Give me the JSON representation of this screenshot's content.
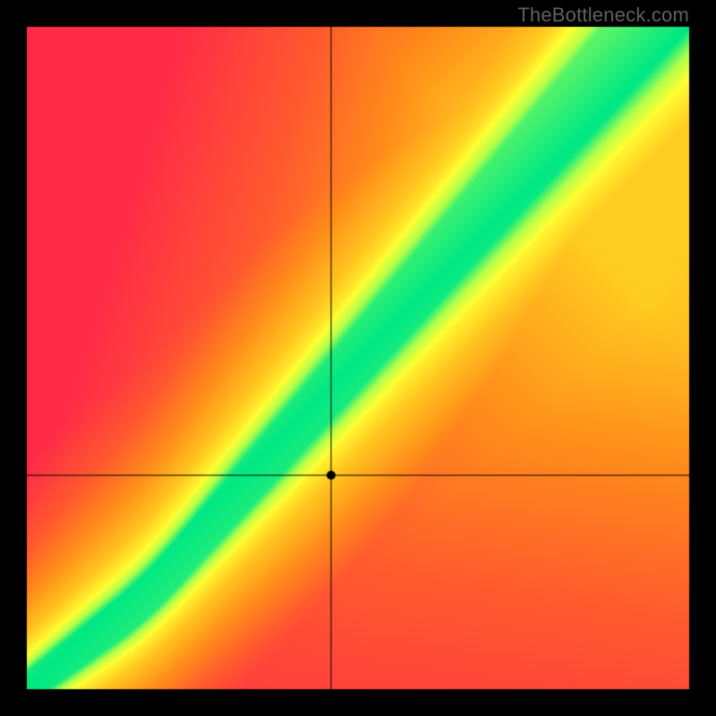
{
  "watermark": "TheBottleneck.com",
  "chart": {
    "type": "heatmap",
    "canvas_size": 800,
    "border_width": 30,
    "border_color": "#000000",
    "inner_size": 740,
    "marker": {
      "nx": 0.46,
      "ny": 0.322,
      "radius": 5,
      "color": "#000000"
    },
    "crosshair": {
      "color": "#000000",
      "width": 1
    },
    "colors": {
      "red": "#ff2b47",
      "orange_red": "#ff5a2e",
      "orange": "#ff8c1a",
      "yellow_o": "#ffc41f",
      "yellow": "#ffff33",
      "yellow_g": "#b4ff4a",
      "green": "#00e884"
    },
    "ideal_curve": {
      "comment": "y = f(x) along which score is maximal; slight S-curve",
      "knee_x": 0.18,
      "knee_y": 0.14,
      "slope_low": 0.78,
      "slope_high": 1.12
    },
    "band": {
      "core_halfwidth": 0.045,
      "yellow_halfwidth": 0.095
    }
  }
}
